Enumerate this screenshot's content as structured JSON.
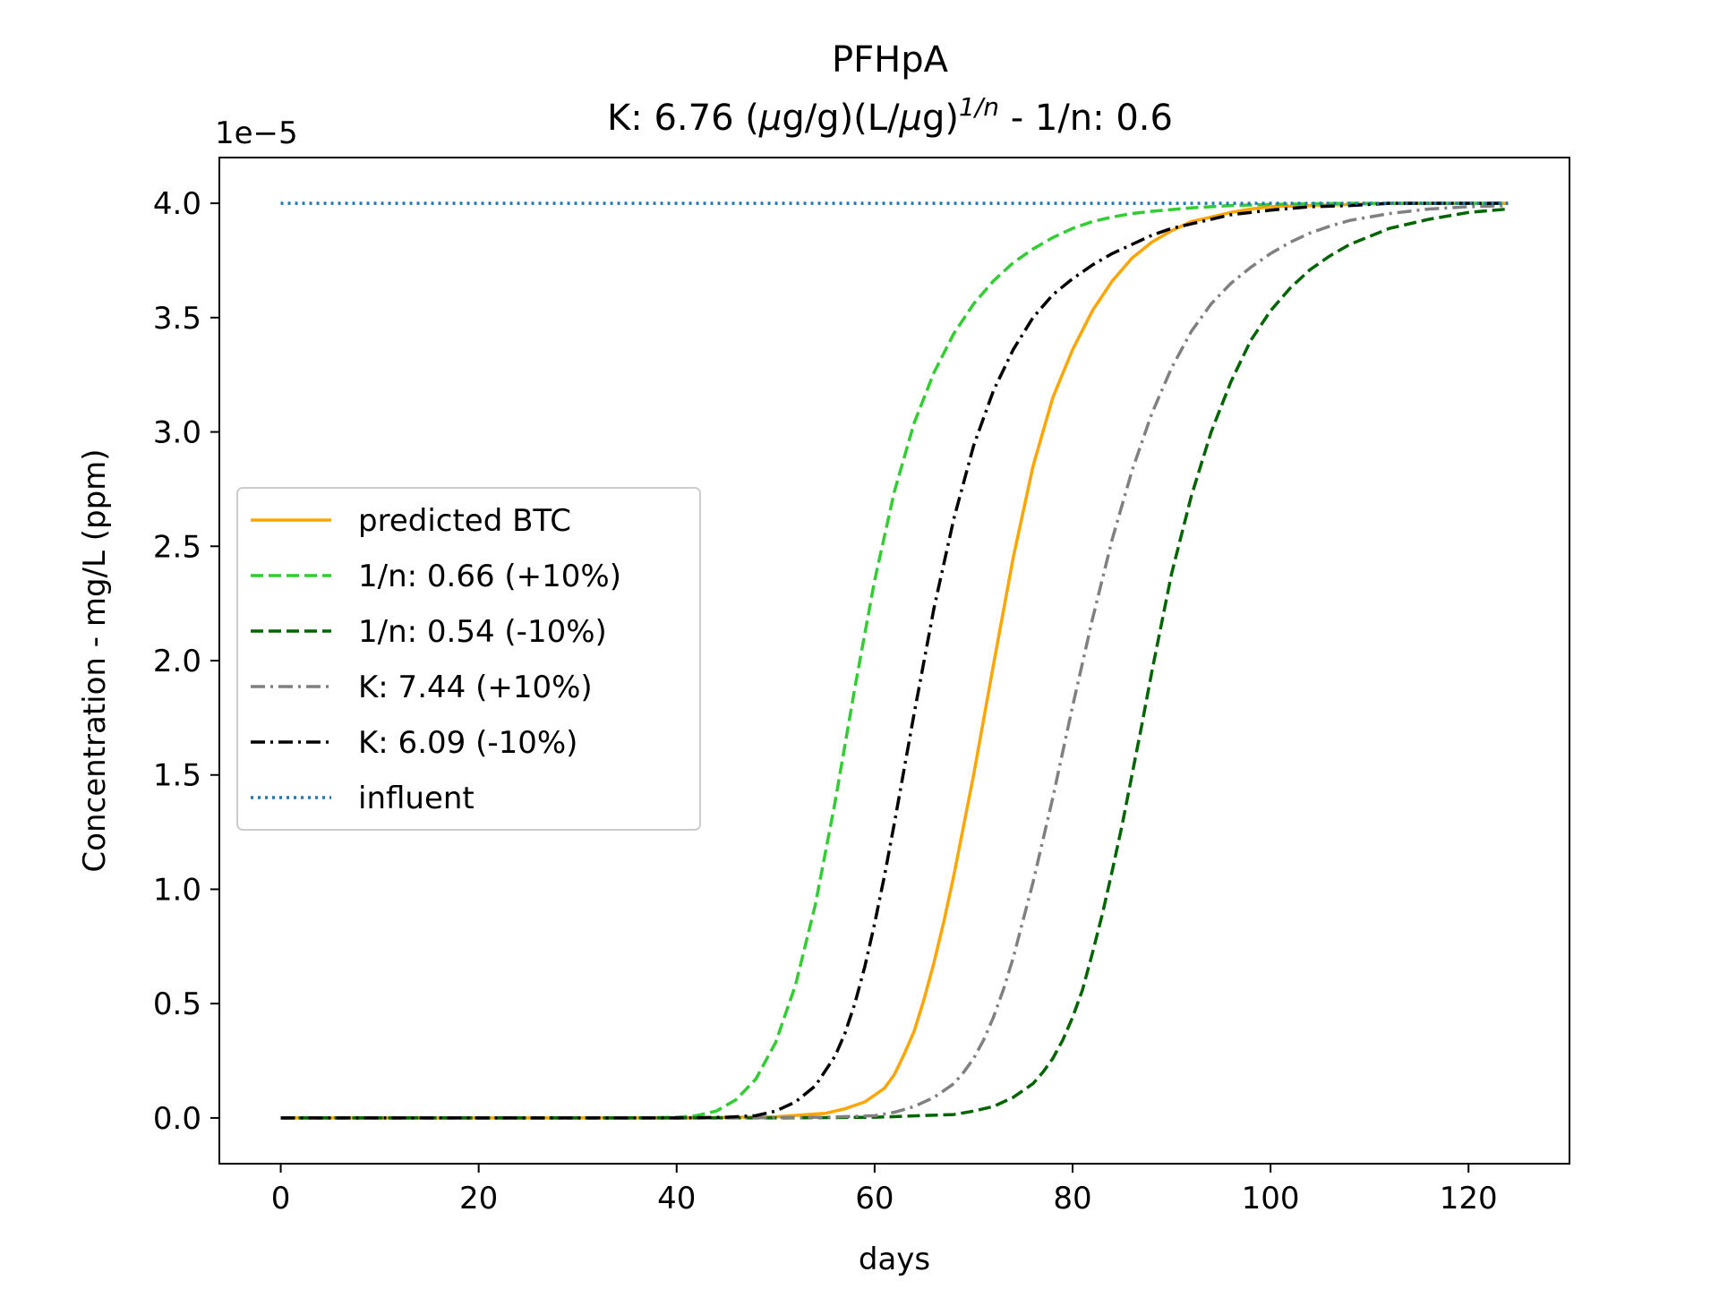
{
  "chart_data": {
    "type": "line",
    "title_line1": "PFHpA",
    "title_line2_prefix": "K: 6.76 (",
    "title_mu1": "μ",
    "title_line2_mid": "g/g)(L/",
    "title_mu2": "μ",
    "title_line2_mid2": "g)",
    "title_superscript": "1/n",
    "title_line2_suffix": " - 1/n: 0.6",
    "xlabel": "days",
    "ylabel": "Concentration - mg/L (ppm)",
    "y_offset_label": "1e−5",
    "y_scale_factor": 1e-05,
    "xlim": [
      -6.2,
      130.2
    ],
    "ylim": [
      -0.2,
      4.2
    ],
    "x_ticks": [
      0,
      20,
      40,
      60,
      80,
      100,
      120
    ],
    "y_ticks": [
      0.0,
      0.5,
      1.0,
      1.5,
      2.0,
      2.5,
      3.0,
      3.5,
      4.0
    ],
    "x_tick_labels": [
      "0",
      "20",
      "40",
      "60",
      "80",
      "100",
      "120"
    ],
    "y_tick_labels": [
      "0.0",
      "0.5",
      "1.0",
      "1.5",
      "2.0",
      "2.5",
      "3.0",
      "3.5",
      "4.0"
    ],
    "grid": false,
    "legend_position": "center-left",
    "series": [
      {
        "name": "predicted BTC",
        "color": "#ffa500",
        "style": "solid",
        "x": [
          0,
          40,
          50,
          55,
          57,
          59,
          61,
          62,
          63,
          64,
          65,
          66,
          67,
          68,
          70,
          72,
          74,
          76,
          78,
          80,
          82,
          84,
          86,
          88,
          90,
          92,
          94,
          96,
          98,
          100,
          104,
          108,
          112,
          116,
          120,
          124
        ],
        "y": [
          0,
          0,
          0.005,
          0.02,
          0.04,
          0.07,
          0.13,
          0.19,
          0.28,
          0.38,
          0.52,
          0.68,
          0.86,
          1.06,
          1.5,
          1.98,
          2.45,
          2.85,
          3.15,
          3.36,
          3.53,
          3.66,
          3.76,
          3.83,
          3.88,
          3.92,
          3.94,
          3.96,
          3.975,
          3.985,
          3.99,
          3.995,
          4.0,
          4.0,
          4.0,
          4.0
        ]
      },
      {
        "name": "1/n: 0.66 (+10%)",
        "color": "#32cd32",
        "style": "dashed",
        "x": [
          0,
          35,
          40,
          42,
          44,
          46,
          48,
          50,
          52,
          54,
          56,
          58,
          60,
          62,
          64,
          66,
          68,
          70,
          72,
          74,
          76,
          78,
          80,
          82,
          84,
          86,
          88,
          92,
          96,
          100,
          108,
          116,
          124
        ],
        "y": [
          0,
          0,
          0.003,
          0.01,
          0.03,
          0.08,
          0.17,
          0.33,
          0.58,
          0.93,
          1.38,
          1.88,
          2.35,
          2.74,
          3.04,
          3.26,
          3.43,
          3.56,
          3.66,
          3.74,
          3.8,
          3.85,
          3.89,
          3.92,
          3.94,
          3.955,
          3.965,
          3.98,
          3.99,
          3.995,
          4.0,
          4.0,
          4.0
        ]
      },
      {
        "name": "1/n: 0.54 (-10%)",
        "color": "#006400",
        "style": "dashed",
        "x": [
          0,
          50,
          60,
          68,
          70,
          72,
          74,
          76,
          77,
          78,
          79,
          80,
          81,
          82,
          83,
          84,
          85,
          86,
          87,
          88,
          90,
          92,
          94,
          96,
          98,
          100,
          102,
          104,
          106,
          108,
          112,
          116,
          120,
          124
        ],
        "y": [
          0,
          0,
          0.003,
          0.015,
          0.03,
          0.05,
          0.09,
          0.15,
          0.2,
          0.26,
          0.34,
          0.44,
          0.56,
          0.72,
          0.89,
          1.08,
          1.28,
          1.5,
          1.72,
          1.95,
          2.38,
          2.72,
          3.0,
          3.22,
          3.4,
          3.53,
          3.63,
          3.71,
          3.77,
          3.82,
          3.89,
          3.93,
          3.96,
          3.975
        ]
      },
      {
        "name": "K: 7.44 (+10%)",
        "color": "#808080",
        "style": "dashdot",
        "x": [
          0,
          45,
          55,
          60,
          62,
          64,
          66,
          68,
          69,
          70,
          71,
          72,
          73,
          74,
          76,
          78,
          80,
          82,
          84,
          86,
          88,
          90,
          92,
          94,
          96,
          98,
          100,
          102,
          104,
          106,
          108,
          112,
          116,
          120,
          124
        ],
        "y": [
          0,
          0,
          0.003,
          0.01,
          0.025,
          0.05,
          0.09,
          0.15,
          0.2,
          0.26,
          0.34,
          0.44,
          0.56,
          0.7,
          1.03,
          1.4,
          1.8,
          2.18,
          2.53,
          2.83,
          3.08,
          3.28,
          3.44,
          3.56,
          3.65,
          3.72,
          3.78,
          3.83,
          3.87,
          3.9,
          3.925,
          3.955,
          3.975,
          3.985,
          3.99
        ]
      },
      {
        "name": "K: 6.09 (-10%)",
        "color": "#000000",
        "style": "dashdot",
        "x": [
          0,
          40,
          45,
          48,
          50,
          52,
          54,
          56,
          57,
          58,
          59,
          60,
          61,
          62,
          64,
          66,
          68,
          70,
          72,
          74,
          76,
          78,
          80,
          82,
          84,
          86,
          88,
          90,
          92,
          96,
          100,
          104,
          108,
          112,
          116,
          120,
          124
        ],
        "y": [
          0,
          0,
          0.003,
          0.01,
          0.03,
          0.07,
          0.14,
          0.27,
          0.37,
          0.5,
          0.66,
          0.85,
          1.06,
          1.29,
          1.77,
          2.23,
          2.62,
          2.94,
          3.18,
          3.36,
          3.5,
          3.6,
          3.67,
          3.73,
          3.78,
          3.82,
          3.86,
          3.89,
          3.91,
          3.95,
          3.97,
          3.985,
          3.99,
          4.0,
          4.0,
          4.0,
          4.0
        ]
      },
      {
        "name": "influent",
        "color": "#1f77b4",
        "style": "dotted",
        "x": [
          0,
          124
        ],
        "y": [
          4.0,
          4.0
        ]
      }
    ]
  }
}
